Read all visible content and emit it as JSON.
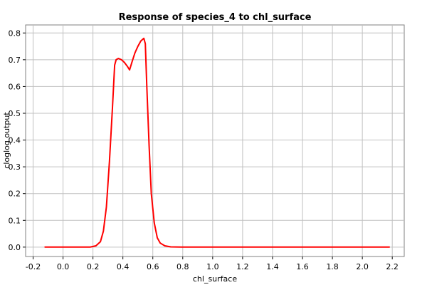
{
  "chart_data": {
    "type": "line",
    "title": "Response of species_4 to chl_surface",
    "xlabel": "chl_surface",
    "ylabel": "cloglog output",
    "xlim": [
      -0.25,
      2.28
    ],
    "ylim": [
      -0.035,
      0.83
    ],
    "x_ticks": [
      -0.2,
      0.0,
      0.2,
      0.4,
      0.6,
      0.8,
      1.0,
      1.2,
      1.4,
      1.6,
      1.8,
      2.0,
      2.2
    ],
    "x_tick_labels": [
      "-0.2",
      "0.0",
      "0.2",
      "0.4",
      "0.6",
      "0.8",
      "1.0",
      "1.2",
      "1.4",
      "1.6",
      "1.8",
      "2.0",
      "2.2"
    ],
    "y_ticks": [
      0.0,
      0.1,
      0.2,
      0.3,
      0.4,
      0.5,
      0.6,
      0.7,
      0.8
    ],
    "y_tick_labels": [
      "0.0",
      "0.1",
      "0.2",
      "0.3",
      "0.4",
      "0.5",
      "0.6",
      "0.7",
      "0.8"
    ],
    "grid": true,
    "series": [
      {
        "color": "#ff0000",
        "x": [
          -0.12,
          0.0,
          0.1,
          0.18,
          0.22,
          0.25,
          0.27,
          0.29,
          0.31,
          0.33,
          0.345,
          0.355,
          0.37,
          0.39,
          0.41,
          0.43,
          0.445,
          0.46,
          0.48,
          0.5,
          0.52,
          0.54,
          0.55,
          0.56,
          0.575,
          0.59,
          0.61,
          0.63,
          0.65,
          0.68,
          0.72,
          0.8,
          1.0,
          1.5,
          2.0,
          2.18
        ],
        "y": [
          0.0,
          0.0,
          0.0,
          0.0,
          0.005,
          0.02,
          0.06,
          0.15,
          0.32,
          0.52,
          0.68,
          0.7,
          0.705,
          0.7,
          0.69,
          0.675,
          0.662,
          0.69,
          0.725,
          0.75,
          0.77,
          0.78,
          0.76,
          0.6,
          0.38,
          0.2,
          0.09,
          0.035,
          0.015,
          0.005,
          0.001,
          0.0,
          0.0,
          0.0,
          0.0,
          0.0
        ]
      }
    ]
  }
}
